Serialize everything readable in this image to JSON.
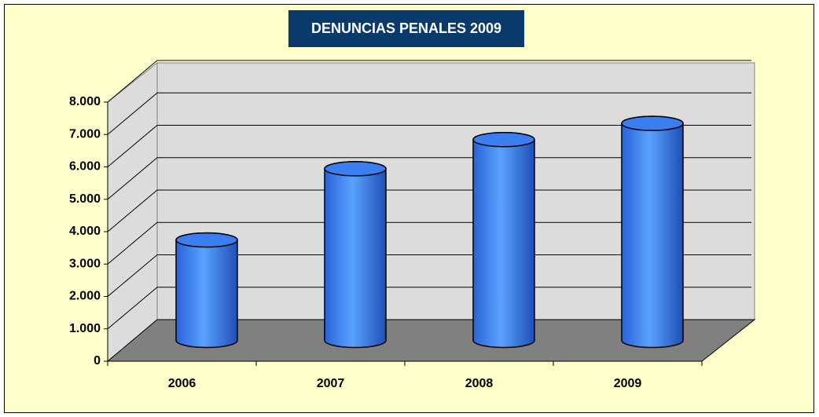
{
  "chart_data": {
    "type": "bar",
    "title": "DENUNCIAS PENALES 2009",
    "categories": [
      "2006",
      "2007",
      "2008",
      "2009"
    ],
    "values": [
      3100,
      5300,
      6200,
      6700
    ],
    "color": "#3a7ef0",
    "ylim": [
      0,
      8000
    ],
    "yticks": [
      0,
      {
        "value": 1000,
        "label": "1.000"
      },
      {
        "value": 2000,
        "label": "2.000"
      },
      {
        "value": 3000,
        "label": "3.000"
      },
      {
        "value": 4000,
        "label": "4.000"
      },
      {
        "value": 5000,
        "label": "5.000"
      },
      {
        "value": 6000,
        "label": "6.000"
      },
      {
        "value": 7000,
        "label": "7.000"
      },
      {
        "value": 8000,
        "label": "8.000"
      }
    ],
    "grid": true
  }
}
